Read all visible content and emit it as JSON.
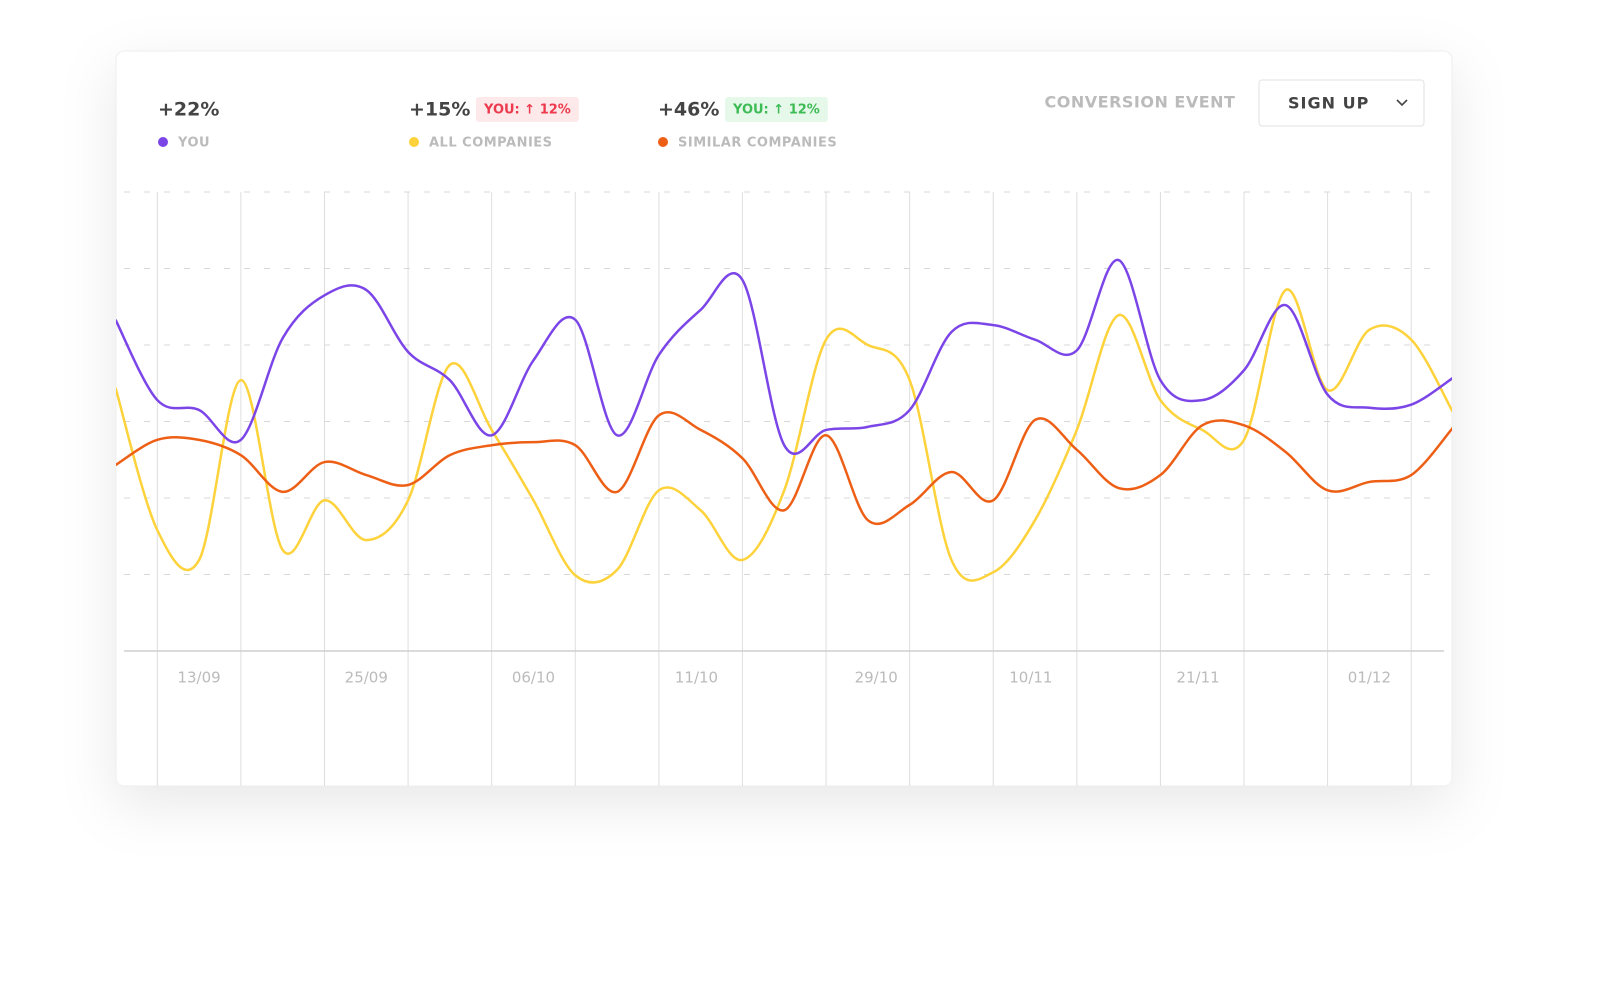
{
  "chart_data": {
    "type": "line",
    "conversion_label": "CONVERSION EVENT",
    "dropdown_value": "SIGN UP",
    "x": [
      0,
      1,
      2,
      3,
      4,
      5,
      6,
      7,
      8,
      9,
      10,
      11,
      12,
      13,
      14,
      15,
      16,
      17,
      18,
      19,
      20,
      21,
      22,
      23,
      24,
      25,
      26,
      27,
      28,
      29,
      30,
      31,
      32
    ],
    "xlim": [
      0,
      32
    ],
    "xticks": [
      {
        "value": 2,
        "label": "13/09"
      },
      {
        "value": 6,
        "label": "25/09"
      },
      {
        "value": 10,
        "label": "06/10"
      },
      {
        "value": 13.9,
        "label": "11/10"
      },
      {
        "value": 18.2,
        "label": "29/10"
      },
      {
        "value": 21.9,
        "label": "10/11"
      },
      {
        "value": 25.9,
        "label": "21/11"
      },
      {
        "value": 30,
        "label": "01/12"
      }
    ],
    "xgrid": [
      1,
      3,
      5,
      7,
      9,
      11,
      13,
      15,
      17,
      19,
      21,
      23,
      25,
      27,
      29,
      31
    ],
    "ylim": [
      0,
      6
    ],
    "ygrid": [
      1,
      2,
      3,
      4,
      5,
      6
    ],
    "series": [
      {
        "name": "YOU",
        "color": "#7b45e8",
        "total_label": "+22%",
        "values": [
          4.33,
          3.28,
          3.15,
          2.76,
          4.09,
          4.65,
          4.72,
          3.91,
          3.54,
          2.82,
          3.8,
          4.33,
          2.82,
          3.87,
          4.46,
          4.85,
          2.69,
          2.89,
          2.93,
          3.15,
          4.17,
          4.26,
          4.07,
          3.93,
          5.11,
          3.54,
          3.28,
          3.67,
          4.52,
          3.35,
          3.18,
          3.22,
          3.57
        ]
      },
      {
        "name": "ALL COMPANIES",
        "color": "#fdd23a",
        "total_label": "+15%",
        "badge": "YOU: ↑ 12%",
        "badge_tone": "negative",
        "values": [
          3.44,
          1.58,
          1.19,
          3.54,
          1.32,
          1.97,
          1.45,
          1.97,
          3.74,
          2.89,
          1.97,
          0.99,
          1.06,
          2.1,
          1.84,
          1.19,
          2.1,
          4.07,
          4.0,
          3.54,
          1.19,
          1.03,
          1.71,
          2.89,
          4.39,
          3.28,
          2.89,
          2.76,
          4.72,
          3.41,
          4.2,
          4.07,
          3.12
        ]
      },
      {
        "name": "SIMILAR COMPANIES",
        "color": "#ee5f16",
        "total_label": "+46%",
        "badge": "YOU: ↑ 12%",
        "badge_tone": "positive",
        "values": [
          2.43,
          2.76,
          2.76,
          2.56,
          2.08,
          2.47,
          2.3,
          2.17,
          2.56,
          2.69,
          2.73,
          2.69,
          2.08,
          3.08,
          2.89,
          2.52,
          1.84,
          2.82,
          1.71,
          1.91,
          2.34,
          1.97,
          3.02,
          2.63,
          2.13,
          2.3,
          2.95,
          2.95,
          2.6,
          2.1,
          2.21,
          2.3,
          2.92
        ]
      }
    ]
  }
}
